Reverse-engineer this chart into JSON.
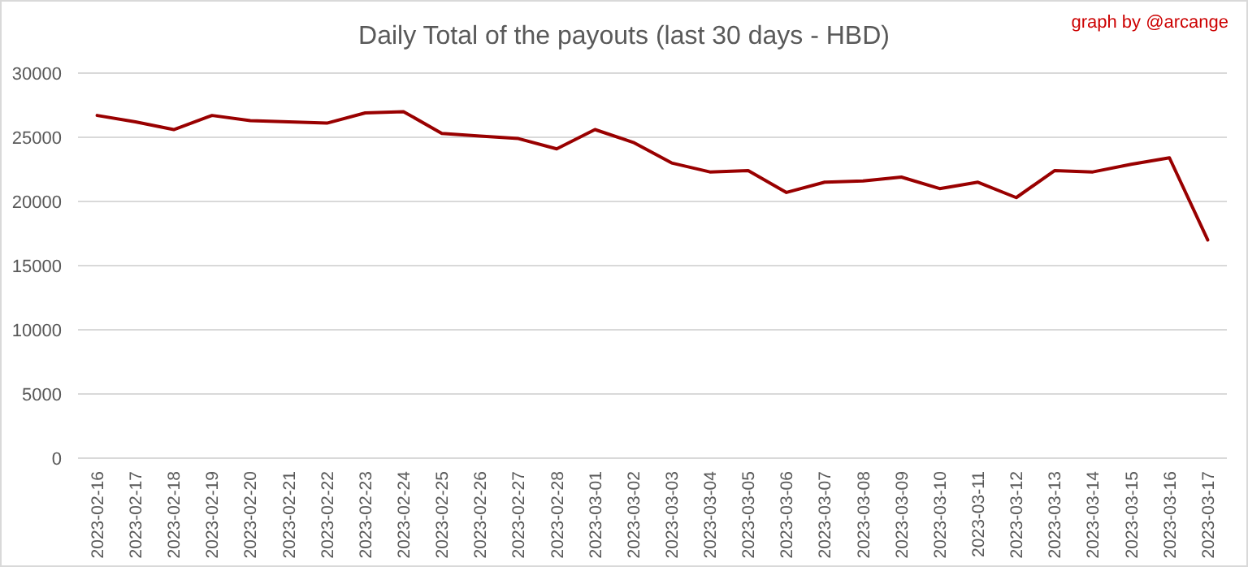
{
  "chart_data": {
    "type": "line",
    "title": "Daily Total of the payouts (last 30 days - HBD)",
    "annotations": [
      "graph by @arcange"
    ],
    "categories": [
      "2023-02-16",
      "2023-02-17",
      "2023-02-18",
      "2023-02-19",
      "2023-02-20",
      "2023-02-21",
      "2023-02-22",
      "2023-02-23",
      "2023-02-24",
      "2023-02-25",
      "2023-02-26",
      "2023-02-27",
      "2023-02-28",
      "2023-03-01",
      "2023-03-02",
      "2023-03-03",
      "2023-03-04",
      "2023-03-05",
      "2023-03-06",
      "2023-03-07",
      "2023-03-08",
      "2023-03-09",
      "2023-03-10",
      "2023-03-11",
      "2023-03-12",
      "2023-03-13",
      "2023-03-14",
      "2023-03-15",
      "2023-03-16",
      "2023-03-17"
    ],
    "series": [
      {
        "color": "#990000",
        "values": [
          26700,
          26200,
          25600,
          26700,
          26300,
          26200,
          26100,
          26900,
          27000,
          25300,
          25100,
          24900,
          24100,
          25600,
          24600,
          23000,
          22300,
          22400,
          20700,
          21500,
          21600,
          21900,
          21000,
          21500,
          20300,
          22400,
          22300,
          22900,
          23400,
          17000
        ]
      }
    ],
    "ylim": [
      0,
      30000
    ],
    "yticks": [
      0,
      5000,
      10000,
      15000,
      20000,
      25000,
      30000
    ],
    "grid": "y",
    "marker": "none",
    "line_style": "solid"
  }
}
